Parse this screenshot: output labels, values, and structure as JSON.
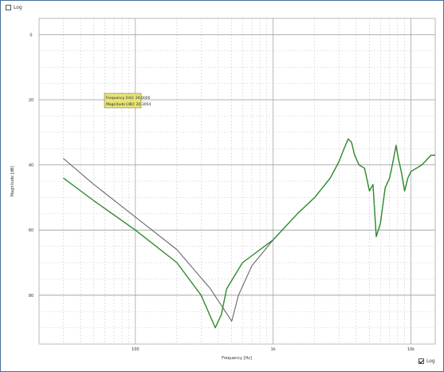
{
  "top_toggle": {
    "label": "Log",
    "checked": false
  },
  "bottom_toggle": {
    "label": "Log",
    "checked": true
  },
  "chart_data": {
    "type": "line",
    "title": "",
    "xlabel": "Frequency [Hz]",
    "ylabel": "Magnitude [dB]",
    "x_scale": "log",
    "xlim": [
      20,
      15000
    ],
    "ylim": [
      95,
      -5
    ],
    "yticks": [
      {
        "value": 0,
        "label": "0"
      },
      {
        "value": 20,
        "label": "20"
      },
      {
        "value": 40,
        "label": "40"
      },
      {
        "value": 60,
        "label": "60"
      },
      {
        "value": 80,
        "label": "80"
      }
    ],
    "xticks": [
      {
        "value": 100,
        "label": "100"
      },
      {
        "value": 1000,
        "label": "1k"
      },
      {
        "value": 10000,
        "label": "10k"
      }
    ],
    "grid": true,
    "tooltip": {
      "lines": [
        "Frequency [Hz]: 20.0000",
        "Magnitude [dB]: 20.3054"
      ]
    },
    "series": [
      {
        "color": "#5a5a5a",
        "points": [
          [
            30,
            38
          ],
          [
            50,
            46
          ],
          [
            100,
            56
          ],
          [
            200,
            66
          ],
          [
            350,
            78
          ],
          [
            450,
            85
          ],
          [
            500,
            88
          ],
          [
            560,
            80
          ],
          [
            700,
            71
          ],
          [
            1000,
            63
          ],
          [
            1500,
            55
          ],
          [
            2000,
            50
          ],
          [
            2600,
            44
          ],
          [
            3000,
            39
          ],
          [
            3200,
            36
          ],
          [
            3500,
            32
          ],
          [
            3700,
            33
          ],
          [
            3900,
            37
          ],
          [
            4200,
            40
          ],
          [
            4600,
            41
          ],
          [
            5000,
            48
          ],
          [
            5300,
            46
          ],
          [
            5600,
            62
          ],
          [
            6000,
            58
          ],
          [
            6500,
            47
          ],
          [
            7000,
            44
          ],
          [
            7400,
            39
          ],
          [
            7800,
            34
          ],
          [
            8100,
            38
          ],
          [
            8500,
            42
          ],
          [
            9000,
            48
          ],
          [
            9500,
            44
          ],
          [
            10000,
            42
          ],
          [
            12000,
            40
          ],
          [
            14000,
            37
          ],
          [
            15000,
            37
          ]
        ]
      },
      {
        "color": "#2e8b2e",
        "points": [
          [
            30,
            44
          ],
          [
            50,
            51
          ],
          [
            100,
            60
          ],
          [
            200,
            70
          ],
          [
            300,
            80
          ],
          [
            380,
            90
          ],
          [
            420,
            86
          ],
          [
            460,
            78
          ],
          [
            600,
            70
          ],
          [
            1000,
            63
          ],
          [
            1500,
            55
          ],
          [
            2000,
            50
          ],
          [
            2600,
            44
          ],
          [
            3000,
            39
          ],
          [
            3200,
            36
          ],
          [
            3500,
            32
          ],
          [
            3700,
            33
          ],
          [
            3900,
            37
          ],
          [
            4200,
            40
          ],
          [
            4600,
            41
          ],
          [
            5000,
            48
          ],
          [
            5300,
            46
          ],
          [
            5600,
            62
          ],
          [
            6000,
            58
          ],
          [
            6500,
            47
          ],
          [
            7000,
            44
          ],
          [
            7400,
            39
          ],
          [
            7800,
            34
          ],
          [
            8100,
            38
          ],
          [
            8500,
            42
          ],
          [
            9000,
            48
          ],
          [
            9500,
            44
          ],
          [
            10000,
            42
          ],
          [
            12000,
            40
          ],
          [
            14000,
            37
          ],
          [
            15000,
            37
          ]
        ]
      }
    ]
  }
}
